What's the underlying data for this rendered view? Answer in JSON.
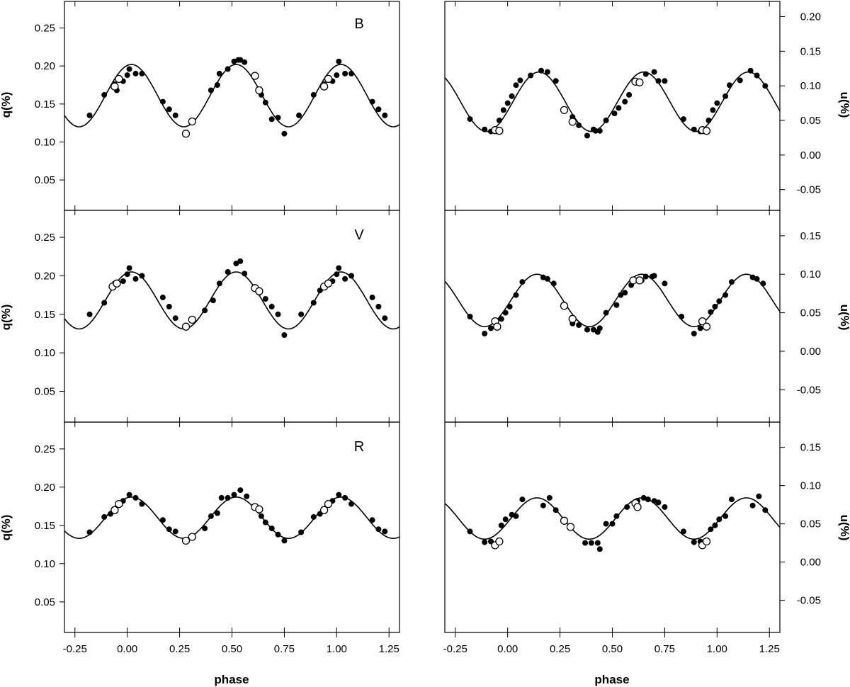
{
  "figure": {
    "left_ylabel": "q(%)",
    "right_ylabel": "u(%)",
    "xlabel": "phase"
  },
  "chart_data": [
    {
      "type": "scatter",
      "panel": "B-q",
      "band": "B",
      "title": "",
      "xlabel": "",
      "ylabel": "q(%)",
      "xlim": [
        -0.3,
        1.3
      ],
      "ylim": [
        0.01,
        0.285
      ],
      "xticks": [
        -0.25,
        0.0,
        0.25,
        0.5,
        0.75,
        1.0,
        1.25
      ],
      "yticks": [
        0.05,
        0.1,
        0.15,
        0.2,
        0.25
      ],
      "model": {
        "mean": 0.161,
        "amp": 0.041,
        "peak_phase": 0.02,
        "harmonic": 2
      },
      "series": [
        {
          "marker": "filled",
          "x": [
            -0.18,
            -0.11,
            -0.06,
            -0.05,
            -0.02,
            0.0,
            0.01,
            0.04,
            0.07,
            0.17,
            0.2,
            0.23,
            0.4,
            0.43,
            0.44,
            0.48,
            0.51,
            0.53,
            0.54,
            0.56,
            0.64,
            0.66,
            0.69,
            0.72,
            0.75,
            0.82,
            0.89,
            0.94,
            0.98,
            1.0,
            1.01,
            1.04,
            1.07,
            1.17,
            1.2,
            1.23
          ],
          "y": [
            0.135,
            0.162,
            0.176,
            0.168,
            0.18,
            0.188,
            0.196,
            0.19,
            0.19,
            0.153,
            0.143,
            0.135,
            0.168,
            0.175,
            0.19,
            0.196,
            0.206,
            0.208,
            0.208,
            0.205,
            0.162,
            0.152,
            0.13,
            0.132,
            0.111,
            0.135,
            0.162,
            0.176,
            0.18,
            0.188,
            0.206,
            0.19,
            0.19,
            0.153,
            0.143,
            0.135
          ]
        },
        {
          "marker": "open",
          "x": [
            -0.06,
            -0.04,
            0.28,
            0.31,
            0.61,
            0.63,
            0.94,
            0.96
          ],
          "y": [
            0.173,
            0.183,
            0.111,
            0.127,
            0.187,
            0.168,
            0.173,
            0.183
          ]
        }
      ]
    },
    {
      "type": "scatter",
      "panel": "B-u",
      "band": "B",
      "title": "",
      "xlabel": "",
      "ylabel": "u(%)",
      "xlim": [
        -0.3,
        1.3
      ],
      "ylim": [
        -0.08,
        0.222
      ],
      "xticks": [
        -0.25,
        0.0,
        0.25,
        0.5,
        0.75,
        1.0,
        1.25
      ],
      "yticks": [
        -0.05,
        0.0,
        0.05,
        0.1,
        0.15,
        0.2
      ],
      "model": {
        "mean": 0.077,
        "amp": 0.043,
        "peak_phase": 0.15,
        "harmonic": 2
      },
      "series": [
        {
          "marker": "filled",
          "x": [
            -0.18,
            -0.11,
            -0.08,
            -0.04,
            -0.02,
            0.0,
            0.02,
            0.04,
            0.06,
            0.11,
            0.16,
            0.19,
            0.23,
            0.31,
            0.34,
            0.38,
            0.41,
            0.42,
            0.44,
            0.47,
            0.51,
            0.53,
            0.56,
            0.58,
            0.66,
            0.7,
            0.72,
            0.75,
            0.84,
            0.89,
            0.92,
            0.96,
            0.98,
            1.0,
            1.04,
            1.06,
            1.11,
            1.16,
            1.19,
            1.23
          ],
          "y": [
            0.052,
            0.037,
            0.034,
            0.05,
            0.065,
            0.075,
            0.085,
            0.101,
            0.108,
            0.115,
            0.122,
            0.12,
            0.107,
            0.055,
            0.043,
            0.028,
            0.037,
            0.035,
            0.035,
            0.05,
            0.06,
            0.068,
            0.077,
            0.087,
            0.117,
            0.12,
            0.107,
            0.107,
            0.052,
            0.037,
            0.034,
            0.05,
            0.065,
            0.075,
            0.085,
            0.101,
            0.108,
            0.122,
            0.115,
            0.1
          ]
        },
        {
          "marker": "open",
          "x": [
            -0.06,
            -0.04,
            0.27,
            0.31,
            0.61,
            0.63,
            0.93,
            0.95
          ],
          "y": [
            0.036,
            0.035,
            0.065,
            0.048,
            0.106,
            0.105,
            0.036,
            0.035
          ]
        }
      ]
    },
    {
      "type": "scatter",
      "panel": "V-q",
      "band": "V",
      "title": "",
      "xlabel": "",
      "ylabel": "q(%)",
      "xlim": [
        -0.3,
        1.3
      ],
      "ylim": [
        0.01,
        0.285
      ],
      "xticks": [
        -0.25,
        0.0,
        0.25,
        0.5,
        0.75,
        1.0,
        1.25
      ],
      "yticks": [
        0.05,
        0.1,
        0.15,
        0.2,
        0.25
      ],
      "model": {
        "mean": 0.168,
        "amp": 0.037,
        "peak_phase": 0.02,
        "harmonic": 2
      },
      "series": [
        {
          "marker": "filled",
          "x": [
            -0.18,
            -0.11,
            -0.06,
            -0.02,
            0.0,
            0.01,
            0.04,
            0.07,
            0.17,
            0.2,
            0.23,
            0.37,
            0.41,
            0.44,
            0.48,
            0.52,
            0.54,
            0.56,
            0.63,
            0.66,
            0.69,
            0.72,
            0.75,
            0.83,
            0.89,
            0.92,
            0.98,
            1.0,
            1.01,
            1.04,
            1.07,
            1.17,
            1.2,
            1.23
          ],
          "y": [
            0.15,
            0.165,
            0.19,
            0.193,
            0.202,
            0.21,
            0.196,
            0.2,
            0.172,
            0.16,
            0.145,
            0.155,
            0.168,
            0.19,
            0.205,
            0.216,
            0.219,
            0.203,
            0.178,
            0.17,
            0.16,
            0.15,
            0.123,
            0.15,
            0.165,
            0.181,
            0.193,
            0.202,
            0.21,
            0.196,
            0.2,
            0.172,
            0.16,
            0.145
          ]
        },
        {
          "marker": "open",
          "x": [
            -0.07,
            -0.05,
            0.28,
            0.31,
            0.61,
            0.63,
            0.94,
            0.96
          ],
          "y": [
            0.186,
            0.19,
            0.134,
            0.143,
            0.184,
            0.18,
            0.186,
            0.19
          ]
        }
      ]
    },
    {
      "type": "scatter",
      "panel": "V-u",
      "band": "V",
      "title": "",
      "xlabel": "",
      "ylabel": "u(%)",
      "xlim": [
        -0.3,
        1.3
      ],
      "ylim": [
        -0.092,
        0.183
      ],
      "xticks": [
        -0.25,
        0.0,
        0.25,
        0.5,
        0.75,
        1.0,
        1.25
      ],
      "yticks": [
        -0.05,
        0.0,
        0.05,
        0.1,
        0.15
      ],
      "model": {
        "mean": 0.066,
        "amp": 0.034,
        "peak_phase": 0.14,
        "harmonic": 2
      },
      "series": [
        {
          "marker": "filled",
          "x": [
            -0.18,
            -0.11,
            -0.08,
            -0.03,
            -0.01,
            0.01,
            0.04,
            0.07,
            0.17,
            0.19,
            0.22,
            0.31,
            0.34,
            0.38,
            0.41,
            0.43,
            0.44,
            0.47,
            0.52,
            0.54,
            0.56,
            0.59,
            0.64,
            0.66,
            0.69,
            0.7,
            0.75,
            0.83,
            0.89,
            0.92,
            0.97,
            0.99,
            1.01,
            1.04,
            1.07,
            1.17,
            1.19,
            1.22
          ],
          "y": [
            0.045,
            0.023,
            0.03,
            0.042,
            0.05,
            0.058,
            0.073,
            0.09,
            0.096,
            0.094,
            0.088,
            0.036,
            0.034,
            0.028,
            0.028,
            0.025,
            0.03,
            0.05,
            0.06,
            0.073,
            0.076,
            0.086,
            0.092,
            0.097,
            0.097,
            0.098,
            0.088,
            0.045,
            0.023,
            0.03,
            0.051,
            0.058,
            0.065,
            0.073,
            0.09,
            0.096,
            0.094,
            0.088
          ]
        },
        {
          "marker": "open",
          "x": [
            -0.06,
            -0.05,
            0.27,
            0.31,
            0.6,
            0.63,
            0.93,
            0.95
          ],
          "y": [
            0.039,
            0.032,
            0.059,
            0.042,
            0.092,
            0.092,
            0.039,
            0.032
          ]
        }
      ]
    },
    {
      "type": "scatter",
      "panel": "R-q",
      "band": "R",
      "title": "",
      "xlabel": "",
      "ylabel": "q(%)",
      "xlim": [
        -0.3,
        1.3
      ],
      "ylim": [
        0.01,
        0.285
      ],
      "xticks": [
        -0.25,
        0.0,
        0.25,
        0.5,
        0.75,
        1.0,
        1.25
      ],
      "yticks": [
        0.05,
        0.1,
        0.15,
        0.2,
        0.25
      ],
      "model": {
        "mean": 0.16,
        "amp": 0.027,
        "peak_phase": 0.02,
        "harmonic": 2
      },
      "series": [
        {
          "marker": "filled",
          "x": [
            -0.18,
            -0.11,
            -0.08,
            -0.02,
            0.01,
            0.04,
            0.07,
            0.17,
            0.2,
            0.23,
            0.37,
            0.4,
            0.43,
            0.45,
            0.48,
            0.51,
            0.54,
            0.57,
            0.64,
            0.66,
            0.69,
            0.72,
            0.75,
            0.83,
            0.89,
            0.92,
            0.98,
            1.01,
            1.04,
            1.07,
            1.17,
            1.2,
            1.23
          ],
          "y": [
            0.141,
            0.161,
            0.165,
            0.182,
            0.19,
            0.186,
            0.178,
            0.157,
            0.145,
            0.142,
            0.146,
            0.162,
            0.166,
            0.186,
            0.186,
            0.19,
            0.196,
            0.188,
            0.162,
            0.154,
            0.146,
            0.138,
            0.13,
            0.141,
            0.161,
            0.165,
            0.182,
            0.19,
            0.186,
            0.178,
            0.157,
            0.145,
            0.142
          ]
        },
        {
          "marker": "open",
          "x": [
            -0.06,
            -0.04,
            0.28,
            0.31,
            0.61,
            0.63,
            0.94,
            0.96
          ],
          "y": [
            0.17,
            0.178,
            0.13,
            0.135,
            0.174,
            0.171,
            0.17,
            0.178
          ]
        }
      ]
    },
    {
      "type": "scatter",
      "panel": "R-u",
      "band": "R",
      "title": "",
      "xlabel": "",
      "ylabel": "u(%)",
      "xlim": [
        -0.3,
        1.3
      ],
      "ylim": [
        -0.092,
        0.183
      ],
      "xticks": [
        -0.25,
        0.0,
        0.25,
        0.5,
        0.75,
        1.0,
        1.25
      ],
      "yticks": [
        -0.05,
        0.0,
        0.05,
        0.1,
        0.15
      ],
      "model": {
        "mean": 0.057,
        "amp": 0.027,
        "peak_phase": 0.14,
        "harmonic": 2
      },
      "series": [
        {
          "marker": "filled",
          "x": [
            -0.18,
            -0.11,
            -0.08,
            -0.03,
            -0.01,
            0.02,
            0.04,
            0.07,
            0.17,
            0.2,
            0.23,
            0.37,
            0.4,
            0.43,
            0.44,
            0.47,
            0.5,
            0.52,
            0.57,
            0.62,
            0.65,
            0.67,
            0.7,
            0.72,
            0.75,
            0.84,
            0.89,
            0.92,
            0.97,
            0.99,
            1.01,
            1.04,
            1.07,
            1.17,
            1.2,
            1.23
          ],
          "y": [
            0.04,
            0.026,
            0.027,
            0.048,
            0.056,
            0.062,
            0.06,
            0.082,
            0.074,
            0.084,
            0.068,
            0.025,
            0.025,
            0.025,
            0.017,
            0.05,
            0.05,
            0.06,
            0.072,
            0.08,
            0.084,
            0.082,
            0.08,
            0.078,
            0.072,
            0.04,
            0.026,
            0.027,
            0.043,
            0.048,
            0.056,
            0.06,
            0.082,
            0.074,
            0.086,
            0.068
          ]
        },
        {
          "marker": "open",
          "x": [
            -0.06,
            -0.04,
            0.27,
            0.3,
            0.61,
            0.62,
            0.93,
            0.95
          ],
          "y": [
            0.022,
            0.027,
            0.054,
            0.046,
            0.077,
            0.072,
            0.022,
            0.027
          ]
        }
      ]
    }
  ]
}
